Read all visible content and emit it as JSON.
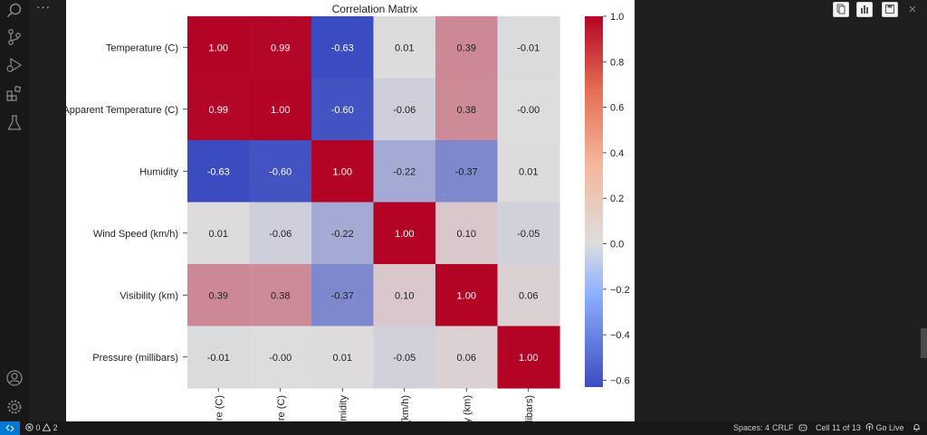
{
  "editor": {
    "more_actions": "···"
  },
  "statusbar": {
    "errors": "0",
    "warnings": "2",
    "spaces": "Spaces: 4",
    "eol": "CRLF",
    "cell": "Cell 11 of 13",
    "golive": "Go Live"
  },
  "chart_data": {
    "type": "heatmap",
    "title": "Correlation Matrix",
    "row_labels": [
      "Temperature (C)",
      "Apparent Temperature (C)",
      "Humidity",
      "Wind Speed (km/h)",
      "Visibility (km)",
      "Pressure (millibars)"
    ],
    "col_labels_visible": [
      "ure (C)",
      "ure (C)",
      "midity",
      "(km/h)",
      "y (km)",
      "llibars)"
    ],
    "values": [
      [
        1.0,
        0.99,
        -0.63,
        0.01,
        0.39,
        -0.01
      ],
      [
        0.99,
        1.0,
        -0.6,
        -0.06,
        0.38,
        -0.0
      ],
      [
        -0.63,
        -0.6,
        1.0,
        -0.22,
        -0.37,
        0.01
      ],
      [
        0.01,
        -0.06,
        -0.22,
        1.0,
        0.1,
        -0.05
      ],
      [
        0.39,
        0.38,
        -0.37,
        0.1,
        1.0,
        0.06
      ],
      [
        -0.01,
        -0.0,
        0.01,
        -0.05,
        0.06,
        1.0
      ]
    ],
    "value_labels": [
      [
        "1.00",
        "0.99",
        "-0.63",
        "0.01",
        "0.39",
        "-0.01"
      ],
      [
        "0.99",
        "1.00",
        "-0.60",
        "-0.06",
        "0.38",
        "-0.00"
      ],
      [
        "-0.63",
        "-0.60",
        "1.00",
        "-0.22",
        "-0.37",
        "0.01"
      ],
      [
        "0.01",
        "-0.06",
        "-0.22",
        "1.00",
        "0.10",
        "-0.05"
      ],
      [
        "0.39",
        "0.38",
        "-0.37",
        "0.10",
        "1.00",
        "0.06"
      ],
      [
        "-0.01",
        "-0.00",
        "0.01",
        "-0.05",
        "0.06",
        "1.00"
      ]
    ],
    "colorbar": {
      "min": -0.63,
      "max": 1.0,
      "ticks": [
        1.0,
        0.8,
        0.6,
        0.4,
        0.2,
        0.0,
        -0.2,
        -0.4,
        -0.6
      ],
      "tick_labels": [
        "1.0",
        "0.8",
        "0.6",
        "0.4",
        "0.2",
        "0.0",
        "−0.2",
        "−0.4",
        "−0.6"
      ]
    },
    "colormap": "coolwarm",
    "colors": {
      "low": "#3b4cc0",
      "mid": "#dddddd",
      "high": "#b40426"
    }
  }
}
